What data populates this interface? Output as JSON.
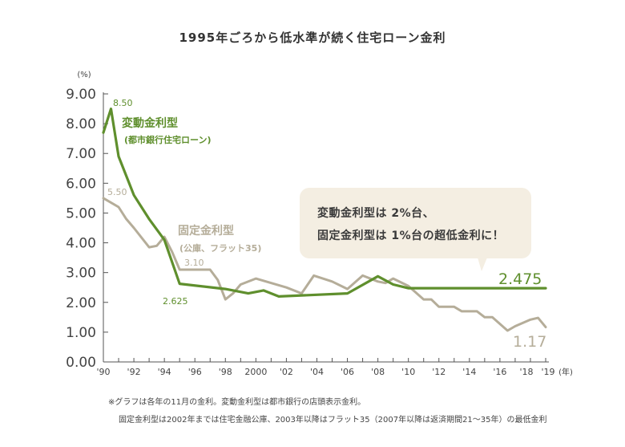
{
  "chart_data": {
    "type": "line",
    "title": "1995年ごろから低水準が続く住宅ローン金利",
    "y_unit": "(%)",
    "x_unit": "(年)",
    "ylim": [
      0,
      9
    ],
    "y_ticks": [
      "0.00",
      "1.00",
      "2.00",
      "3.00",
      "4.00",
      "5.00",
      "6.00",
      "7.00",
      "8.00",
      "9.00"
    ],
    "xlim": [
      1990,
      2019
    ],
    "x_ticks": [
      {
        "x": 1990,
        "label": "'90"
      },
      {
        "x": 1992,
        "label": "'92"
      },
      {
        "x": 1994,
        "label": "'94"
      },
      {
        "x": 1996,
        "label": "'96"
      },
      {
        "x": 1998,
        "label": "'98"
      },
      {
        "x": 2000,
        "label": "2000"
      },
      {
        "x": 2002,
        "label": "'02"
      },
      {
        "x": 2004,
        "label": "'04"
      },
      {
        "x": 2006,
        "label": "'06"
      },
      {
        "x": 2008,
        "label": "'08"
      },
      {
        "x": 2010,
        "label": "'10"
      },
      {
        "x": 2012,
        "label": "'12"
      },
      {
        "x": 2014,
        "label": "'14"
      },
      {
        "x": 2016,
        "label": "'16"
      },
      {
        "x": 2018,
        "label": "'18"
      },
      {
        "x": 2019,
        "label": "'19"
      }
    ],
    "grid": false,
    "series": [
      {
        "name": "変動金利型",
        "sublabel": "(都市銀行住宅ローン)",
        "color": "#5f8f2d",
        "points": [
          [
            1990,
            7.7
          ],
          [
            1990.5,
            8.5
          ],
          [
            1991,
            6.9
          ],
          [
            1992,
            5.6
          ],
          [
            1993,
            4.8
          ],
          [
            1994,
            4.1
          ],
          [
            1995,
            2.625
          ],
          [
            1998,
            2.45
          ],
          [
            1999.5,
            2.3
          ],
          [
            2000.5,
            2.4
          ],
          [
            2001.5,
            2.2
          ],
          [
            2006,
            2.3
          ],
          [
            2008,
            2.875
          ],
          [
            2009,
            2.6
          ],
          [
            2010,
            2.475
          ],
          [
            2019,
            2.475
          ]
        ]
      },
      {
        "name": "固定金利型",
        "sublabel": "(公庫、フラット35)",
        "color": "#b5ad99",
        "points": [
          [
            1990,
            5.5
          ],
          [
            1991,
            5.2
          ],
          [
            1991.5,
            4.8
          ],
          [
            1992,
            4.5
          ],
          [
            1993,
            3.85
          ],
          [
            1993.5,
            3.9
          ],
          [
            1994,
            4.2
          ],
          [
            1994.5,
            3.7
          ],
          [
            1995,
            3.1
          ],
          [
            1997,
            3.1
          ],
          [
            1997.5,
            2.75
          ],
          [
            1998,
            2.1
          ],
          [
            1998.5,
            2.3
          ],
          [
            1999,
            2.6
          ],
          [
            2000,
            2.8
          ],
          [
            2002,
            2.5
          ],
          [
            2003,
            2.3
          ],
          [
            2003.8,
            2.9
          ],
          [
            2005,
            2.7
          ],
          [
            2006,
            2.45
          ],
          [
            2007,
            2.9
          ],
          [
            2008,
            2.7
          ],
          [
            2008.5,
            2.65
          ],
          [
            2009,
            2.8
          ],
          [
            2010,
            2.55
          ],
          [
            2011,
            2.1
          ],
          [
            2011.5,
            2.1
          ],
          [
            2012,
            1.85
          ],
          [
            2013,
            1.85
          ],
          [
            2013.5,
            1.7
          ],
          [
            2014.5,
            1.7
          ],
          [
            2015,
            1.5
          ],
          [
            2015.5,
            1.5
          ],
          [
            2016.5,
            1.05
          ],
          [
            2017,
            1.2
          ],
          [
            2018,
            1.42
          ],
          [
            2018.5,
            1.48
          ],
          [
            2019,
            1.17
          ]
        ]
      }
    ],
    "data_labels": [
      {
        "text": "8.50",
        "series": "変動金利型"
      },
      {
        "text": "2.625",
        "series": "変動金利型"
      },
      {
        "text": "2.475",
        "series": "変動金利型"
      },
      {
        "text": "5.50",
        "series": "固定金利型"
      },
      {
        "text": "3.10",
        "series": "固定金利型"
      },
      {
        "text": "1.17",
        "series": "固定金利型"
      }
    ],
    "callout": [
      "変動金利型は 2%台、",
      "固定金利型は 1%台の超低金利に！"
    ]
  },
  "notes": [
    "※グラフは各年の11月の金利。変動金利型は都市銀行の店頭表示金利。",
    "固定金利型は2002年までは住宅金融公庫、2003年以降はフラット35（2007年以降は返済期間21～35年）の最低金利"
  ],
  "colors": {
    "fixed": "#b5ad99",
    "variable": "#5f8f2d",
    "callout_bg": "#f4eee2"
  }
}
